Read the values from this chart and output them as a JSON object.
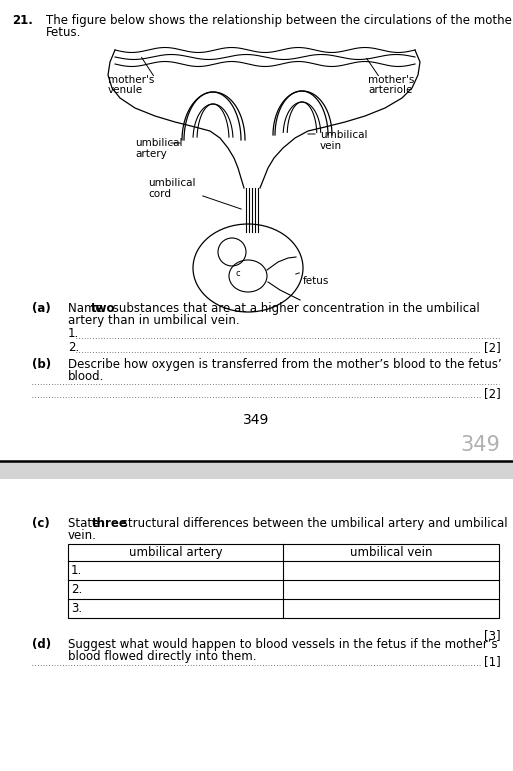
{
  "question_number": "21.",
  "intro_line1": "The figure below shows the relationship between the circulations of the mother and",
  "intro_line2": "Fetus.",
  "page_number_center": "349",
  "page_number_right": "349",
  "part_a_label": "(a)",
  "part_a_marks": "[2]",
  "part_b_label": "(b)",
  "part_b_marks": "[2]",
  "part_c_label": "(c)",
  "part_c_marks": "[3]",
  "table_col1": "umbilical artery",
  "table_col2": "umbilical vein",
  "table_rows": [
    "1.",
    "2.",
    "3."
  ],
  "part_d_label": "(d)",
  "part_d_marks": "[1]",
  "bg_color": "#ffffff",
  "text_color": "#000000",
  "font_size": 8.5,
  "font_size_page_center": 10,
  "font_size_page_right": 15
}
